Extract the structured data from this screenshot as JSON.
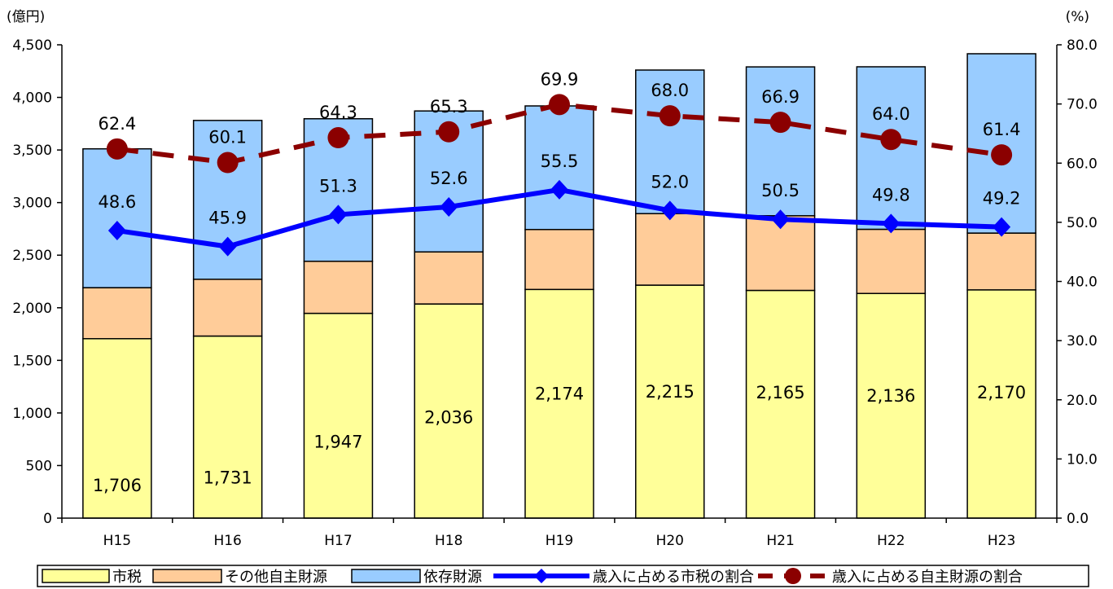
{
  "chart_data": {
    "type": "bar",
    "stacked": true,
    "categories": [
      "H15",
      "H16",
      "H17",
      "H18",
      "H19",
      "H20",
      "H21",
      "H22",
      "H23"
    ],
    "y_left_unit": "(億円)",
    "y_right_unit": "(%)",
    "ylim_left": [
      0,
      4500
    ],
    "ylim_right": [
      0,
      80
    ],
    "left_ticks": [
      "0",
      "500",
      "1,000",
      "1,500",
      "2,000",
      "2,500",
      "3,000",
      "3,500",
      "4,000",
      "4,500"
    ],
    "right_ticks": [
      "0.0",
      "10.0",
      "20.0",
      "30.0",
      "40.0",
      "50.0",
      "60.0",
      "70.0",
      "80.0"
    ],
    "grid": false,
    "legend_position": "bottom",
    "series": [
      {
        "name": "市税",
        "kind": "bar",
        "axis": "left",
        "color": "#FFFF99",
        "values": [
          1706,
          1731,
          1947,
          2036,
          2174,
          2215,
          2165,
          2136,
          2170
        ],
        "labels": [
          "1,706",
          "1,731",
          "1,947",
          "2,036",
          "2,174",
          "2,215",
          "2,165",
          "2,136",
          "2,170"
        ]
      },
      {
        "name": "その他自主財源",
        "kind": "bar",
        "axis": "left",
        "color": "#FFCC99",
        "values": [
          485,
          540,
          495,
          495,
          570,
          680,
          710,
          610,
          540
        ]
      },
      {
        "name": "依存財源",
        "kind": "bar",
        "axis": "left",
        "color": "#99CCFF",
        "values": [
          1320,
          1510,
          1355,
          1340,
          1175,
          1365,
          1415,
          1545,
          1705
        ]
      },
      {
        "name": "歳入に占める市税の割合",
        "kind": "line",
        "axis": "right",
        "color": "#0000FF",
        "values": [
          48.6,
          45.9,
          51.3,
          52.6,
          55.5,
          52.0,
          50.5,
          49.8,
          49.2
        ],
        "labels": [
          "48.6",
          "45.9",
          "51.3",
          "52.6",
          "55.5",
          "52.0",
          "50.5",
          "49.8",
          "49.2"
        ]
      },
      {
        "name": "歳入に占める自主財源の割合",
        "kind": "line-dashed",
        "axis": "right",
        "color": "#8B0000",
        "values": [
          62.4,
          60.1,
          64.3,
          65.3,
          69.9,
          68.0,
          66.9,
          64.0,
          61.4
        ],
        "labels": [
          "62.4",
          "60.1",
          "64.3",
          "65.3",
          "69.9",
          "68.0",
          "66.9",
          "64.0",
          "61.4"
        ]
      }
    ]
  }
}
